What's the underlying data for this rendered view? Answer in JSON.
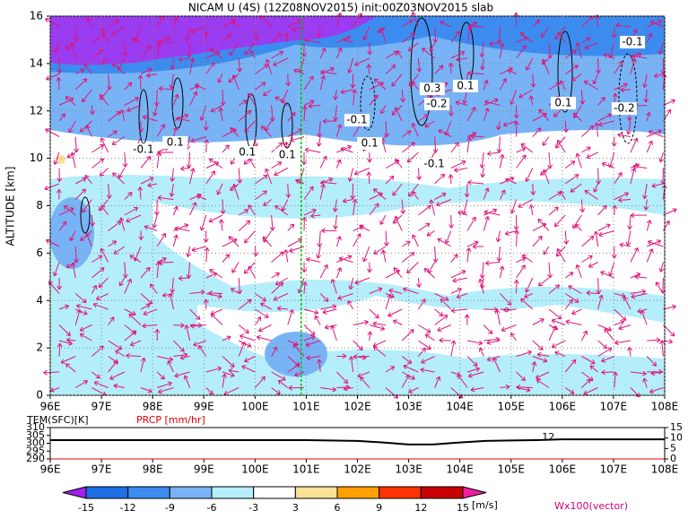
{
  "chart_data": {
    "type": "cross-section",
    "title": "NICAM U (4S) (12Z08NOV2015) init:00Z03NOV2015 slab",
    "ylabel": "ALTITUDE [km]",
    "xlim": [
      96,
      108
    ],
    "ylim": [
      0,
      16
    ],
    "xticks": [
      {
        "value": 96,
        "label": "96E"
      },
      {
        "value": 97,
        "label": "97E"
      },
      {
        "value": 98,
        "label": "98E"
      },
      {
        "value": 99,
        "label": "99E"
      },
      {
        "value": 100,
        "label": "100E"
      },
      {
        "value": 101,
        "label": "101E"
      },
      {
        "value": 102,
        "label": "102E"
      },
      {
        "value": 103,
        "label": "103E"
      },
      {
        "value": 104,
        "label": "104E"
      },
      {
        "value": 105,
        "label": "105E"
      },
      {
        "value": 106,
        "label": "106E"
      },
      {
        "value": 107,
        "label": "107E"
      },
      {
        "value": 108,
        "label": "108E"
      }
    ],
    "yticks": [
      0,
      2,
      4,
      6,
      8,
      10,
      12,
      14,
      16
    ],
    "grid": true,
    "marker_line": {
      "x": 100.9,
      "color": "#00c000"
    },
    "contour_labels": [
      {
        "value": -0.1,
        "x": 97.82,
        "y": 10.36
      },
      {
        "value": 0.1,
        "x": 98.44,
        "y": 10.67
      },
      {
        "value": 0.1,
        "x": 99.85,
        "y": 10.25
      },
      {
        "value": 0.1,
        "x": 100.63,
        "y": 10.14
      },
      {
        "value": -0.1,
        "x": 101.99,
        "y": 11.61
      },
      {
        "value": 0.1,
        "x": 102.24,
        "y": 10.63
      },
      {
        "value": 0.3,
        "x": 103.46,
        "y": 12.93
      },
      {
        "value": 0.1,
        "x": 104.11,
        "y": 13.05
      },
      {
        "value": -0.2,
        "x": 103.55,
        "y": 12.29
      },
      {
        "value": -0.1,
        "x": 103.5,
        "y": 9.76
      },
      {
        "value": 0.1,
        "x": 106.02,
        "y": 12.33
      },
      {
        "value": -0.2,
        "x": 107.21,
        "y": 12.1
      },
      {
        "value": -0.1,
        "x": 107.37,
        "y": 14.9
      }
    ],
    "lower_panel": {
      "temp_label": "TEM(SFC)[K]",
      "prcp_label": "PRCP [mm/hr]",
      "ylim": [
        290,
        310
      ],
      "yticks": [
        290,
        295,
        300,
        305,
        310
      ],
      "y2lim": [
        0,
        15
      ],
      "y2ticks": [
        0,
        5,
        10,
        15
      ],
      "annotation": {
        "value": 12,
        "x": 105.85
      },
      "series": [
        {
          "name": "TEM(SFC)[K]",
          "color": "#000000",
          "x": [
            96,
            98,
            100,
            101,
            102,
            102.5,
            103,
            103.5,
            104,
            104.5,
            105,
            105.5,
            106,
            108
          ],
          "values": [
            302,
            302,
            302,
            302,
            301.5,
            300.5,
            299.2,
            299.3,
            300.5,
            301.5,
            301.8,
            302,
            302.5,
            302.5
          ]
        },
        {
          "name": "PRCP [mm/hr]",
          "color": "#e00000",
          "axis": "y2",
          "x": [
            96,
            108
          ],
          "values": [
            0,
            0
          ]
        }
      ]
    },
    "colorbar": {
      "levels": [
        -15,
        -12,
        -9,
        -6,
        -3,
        3,
        6,
        9,
        12,
        15
      ],
      "colors": [
        "#a020f0",
        "#1e6ee6",
        "#3c8cf0",
        "#78b4f5",
        "#b4eefa",
        "#ffffff",
        "#fae196",
        "#ffa000",
        "#ff3200",
        "#c80000",
        "#f01ea0"
      ],
      "unit": "[m/s]"
    },
    "vector_label": "Wx100(vector)"
  }
}
